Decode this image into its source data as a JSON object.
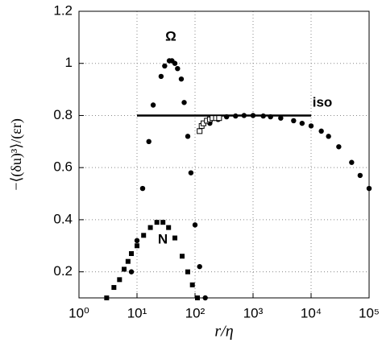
{
  "chart_data": {
    "type": "scatter",
    "x_label": "r/η",
    "y_label": "−⟨(δu)³⟩/(εr)",
    "log_x": true,
    "grid": true,
    "xlim": [
      1,
      100000
    ],
    "xticks": [
      {
        "value": 1,
        "label": "10⁰"
      },
      {
        "value": 10,
        "label": "10¹"
      },
      {
        "value": 100,
        "label": "10²"
      },
      {
        "value": 1000,
        "label": "10³"
      },
      {
        "value": 10000,
        "label": "10⁴"
      },
      {
        "value": 100000,
        "label": "10⁵"
      }
    ],
    "ylim": [
      0.1,
      1.2
    ],
    "yticks": [
      0.2,
      0.4,
      0.6,
      0.8,
      1,
      1.2
    ],
    "series": [
      {
        "name": "Ω",
        "marker": "circle",
        "color": "#000",
        "x": [
          8,
          10,
          12.5,
          16,
          19,
          26,
          30,
          36,
          40,
          45,
          50,
          58,
          65,
          75,
          85,
          100,
          120,
          150
        ],
        "values": [
          0.2,
          0.32,
          0.52,
          0.7,
          0.84,
          0.95,
          0.99,
          1.01,
          1.01,
          1.0,
          0.98,
          0.94,
          0.85,
          0.72,
          0.58,
          0.38,
          0.22,
          0.1
        ]
      },
      {
        "name": "N",
        "marker": "square",
        "color": "#000",
        "x": [
          3,
          4,
          5,
          6,
          7,
          8,
          10,
          13,
          17,
          22,
          28,
          35,
          45,
          60,
          75,
          90,
          110
        ],
        "values": [
          0.1,
          0.14,
          0.17,
          0.21,
          0.24,
          0.27,
          0.3,
          0.34,
          0.37,
          0.39,
          0.39,
          0.37,
          0.33,
          0.26,
          0.2,
          0.15,
          0.1
        ]
      },
      {
        "name": "iso",
        "marker": "line",
        "color": "#000",
        "x": [
          10,
          10000
        ],
        "values": [
          0.8,
          0.8
        ]
      },
      {
        "marker": "circle",
        "color": "#000",
        "x": [
          180,
          250,
          350,
          500,
          700,
          1000,
          1500,
          2000,
          3000,
          5000,
          7000,
          10000,
          15000,
          20000,
          30000,
          50000,
          70000,
          100000
        ],
        "values": [
          0.77,
          0.785,
          0.795,
          0.798,
          0.8,
          0.8,
          0.798,
          0.795,
          0.79,
          0.78,
          0.77,
          0.76,
          0.74,
          0.72,
          0.68,
          0.62,
          0.57,
          0.52
        ]
      },
      {
        "marker": "open-square",
        "color": "#000",
        "x": [
          120,
          130,
          140,
          160,
          180,
          200,
          230,
          260
        ],
        "values": [
          0.74,
          0.76,
          0.77,
          0.78,
          0.785,
          0.79,
          0.79,
          0.79
        ]
      }
    ]
  }
}
